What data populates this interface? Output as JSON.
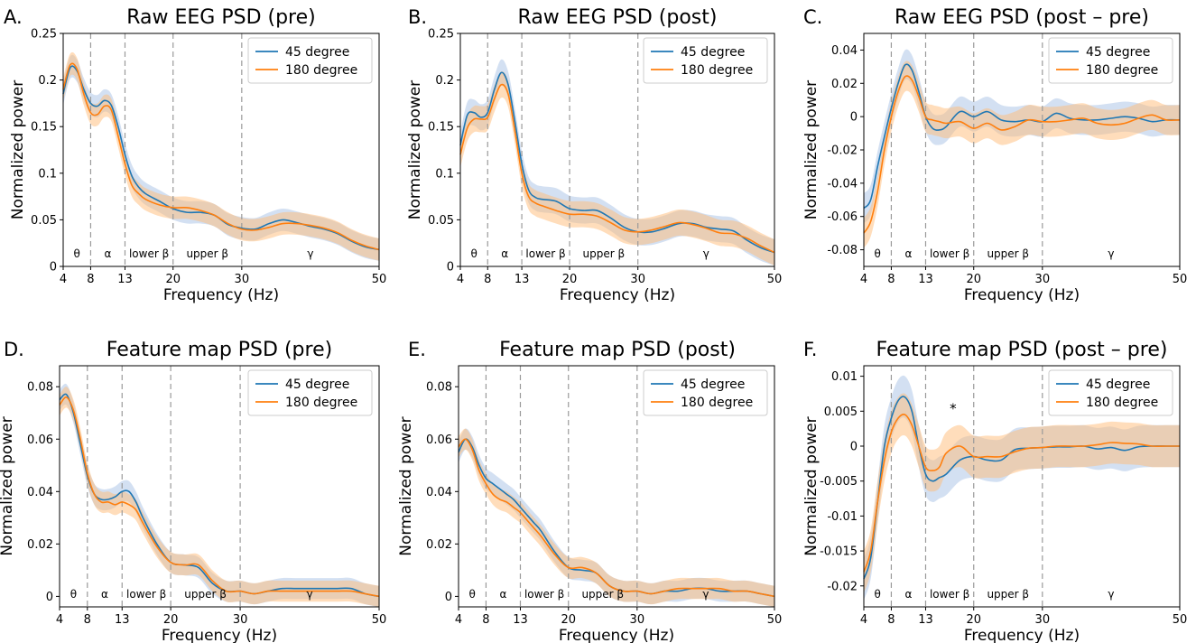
{
  "colors": {
    "series_45": "#1f77b4",
    "series_180": "#ff7f0e",
    "band_45": "#aec7e8",
    "band_180": "#ffbb78",
    "vline": "#9a9a9a"
  },
  "bands": [
    {
      "label": "θ",
      "x": 6
    },
    {
      "label": "α",
      "x": 10.5
    },
    {
      "label": "lower β",
      "x": 16.5
    },
    {
      "label": "upper β",
      "x": 25
    },
    {
      "label": "γ",
      "x": 40
    }
  ],
  "band_edges": [
    8,
    13,
    20,
    30
  ],
  "chart_data": [
    {
      "type": "line",
      "letter": "A.",
      "title": "Raw EEG PSD (pre)",
      "xlabel": "Frequency (Hz)",
      "ylabel": "Normalized power",
      "xlim": [
        4,
        50
      ],
      "ylim": [
        0,
        0.25
      ],
      "x_ticks": [
        4,
        8,
        13,
        20,
        30,
        50
      ],
      "y_ticks": [
        0,
        0.05,
        0.1,
        0.15,
        0.2,
        0.25
      ],
      "y_tick_labels": [
        "0",
        "0.05",
        "0.1",
        "0.15",
        "0.2",
        "0.25"
      ],
      "legend": [
        "45 degree",
        "180 degree"
      ],
      "legend_loc": "top-right",
      "x": [
        4,
        5,
        6,
        7,
        8,
        9,
        10,
        11,
        12,
        13,
        14,
        15,
        16,
        18,
        20,
        22,
        24,
        26,
        28,
        30,
        32,
        34,
        36,
        38,
        40,
        42,
        44,
        46,
        48,
        50
      ],
      "series": [
        {
          "name": "45 degree",
          "band": 0.012,
          "values": [
            0.185,
            0.213,
            0.21,
            0.19,
            0.175,
            0.172,
            0.178,
            0.173,
            0.15,
            0.12,
            0.097,
            0.085,
            0.078,
            0.07,
            0.062,
            0.058,
            0.058,
            0.055,
            0.045,
            0.041,
            0.04,
            0.046,
            0.05,
            0.047,
            0.043,
            0.04,
            0.035,
            0.027,
            0.021,
            0.018
          ]
        },
        {
          "name": "180 degree",
          "band": 0.012,
          "values": [
            0.19,
            0.216,
            0.212,
            0.185,
            0.165,
            0.163,
            0.172,
            0.168,
            0.14,
            0.11,
            0.087,
            0.078,
            0.072,
            0.066,
            0.063,
            0.063,
            0.06,
            0.055,
            0.046,
            0.04,
            0.039,
            0.042,
            0.046,
            0.046,
            0.044,
            0.041,
            0.036,
            0.028,
            0.022,
            0.018
          ]
        }
      ]
    },
    {
      "type": "line",
      "letter": "B.",
      "title": "Raw EEG PSD (post)",
      "xlabel": "Frequency (Hz)",
      "ylabel": "Normalized power",
      "xlim": [
        4,
        50
      ],
      "ylim": [
        0,
        0.25
      ],
      "x_ticks": [
        4,
        8,
        13,
        20,
        30,
        50
      ],
      "y_ticks": [
        0,
        0.05,
        0.1,
        0.15,
        0.2,
        0.25
      ],
      "y_tick_labels": [
        "0",
        "0.05",
        "0.1",
        "0.15",
        "0.2",
        "0.25"
      ],
      "legend": [
        "45 degree",
        "180 degree"
      ],
      "legend_loc": "top-right",
      "x": [
        4,
        5,
        6,
        7,
        8,
        9,
        10,
        11,
        12,
        13,
        14,
        15,
        16,
        18,
        20,
        22,
        24,
        26,
        28,
        30,
        32,
        34,
        36,
        38,
        40,
        42,
        44,
        46,
        48,
        50
      ],
      "series": [
        {
          "name": "45 degree",
          "band": 0.014,
          "values": [
            0.13,
            0.162,
            0.165,
            0.16,
            0.165,
            0.19,
            0.208,
            0.195,
            0.155,
            0.11,
            0.082,
            0.074,
            0.072,
            0.07,
            0.062,
            0.06,
            0.06,
            0.052,
            0.042,
            0.037,
            0.037,
            0.041,
            0.046,
            0.046,
            0.042,
            0.04,
            0.038,
            0.028,
            0.02,
            0.015
          ]
        },
        {
          "name": "180 degree",
          "band": 0.014,
          "values": [
            0.12,
            0.148,
            0.158,
            0.158,
            0.16,
            0.18,
            0.195,
            0.185,
            0.145,
            0.1,
            0.075,
            0.068,
            0.065,
            0.06,
            0.056,
            0.056,
            0.054,
            0.047,
            0.039,
            0.037,
            0.039,
            0.043,
            0.047,
            0.045,
            0.041,
            0.036,
            0.035,
            0.03,
            0.022,
            0.015
          ]
        }
      ]
    },
    {
      "type": "line",
      "letter": "C.",
      "title": "Raw EEG PSD (post – pre)",
      "xlabel": "Frequency (Hz)",
      "ylabel": "Normalized power",
      "xlim": [
        4,
        50
      ],
      "ylim": [
        -0.09,
        0.05
      ],
      "x_ticks": [
        4,
        8,
        13,
        20,
        30,
        50
      ],
      "y_ticks": [
        -0.08,
        -0.06,
        -0.04,
        -0.02,
        0,
        0.02,
        0.04
      ],
      "y_tick_labels": [
        "-0.08",
        "-0.06",
        "-0.04",
        "-0.02",
        "0",
        "0.02",
        "0.04"
      ],
      "legend": [
        "45 degree",
        "180 degree"
      ],
      "legend_loc": "top-right",
      "x": [
        4,
        5,
        6,
        7,
        8,
        9,
        10,
        11,
        12,
        13,
        14,
        15,
        16,
        18,
        20,
        22,
        24,
        26,
        28,
        30,
        32,
        34,
        36,
        38,
        40,
        42,
        44,
        46,
        48,
        50
      ],
      "series": [
        {
          "name": "45 degree",
          "band": 0.009,
          "values": [
            -0.055,
            -0.05,
            -0.03,
            -0.012,
            0.005,
            0.02,
            0.031,
            0.028,
            0.015,
            0.0,
            -0.007,
            -0.008,
            -0.006,
            0.003,
            0.0,
            0.003,
            -0.002,
            -0.003,
            -0.002,
            -0.003,
            0.002,
            -0.001,
            -0.002,
            -0.002,
            -0.001,
            0.0,
            -0.001,
            -0.003,
            -0.002,
            -0.002
          ]
        },
        {
          "name": "180 degree",
          "band": 0.009,
          "values": [
            -0.07,
            -0.063,
            -0.045,
            -0.02,
            0.0,
            0.015,
            0.024,
            0.022,
            0.012,
            0.0,
            -0.002,
            -0.003,
            -0.004,
            -0.003,
            -0.007,
            -0.004,
            -0.008,
            -0.006,
            -0.002,
            -0.003,
            -0.003,
            -0.002,
            -0.001,
            -0.004,
            -0.005,
            -0.004,
            -0.001,
            0.001,
            -0.002,
            -0.002
          ]
        }
      ]
    },
    {
      "type": "line",
      "letter": "D.",
      "title": "Feature map PSD (pre)",
      "xlabel": "Frequency (Hz)",
      "ylabel": "Normalized power",
      "xlim": [
        4,
        50
      ],
      "ylim": [
        -0.004,
        0.088
      ],
      "x_ticks": [
        4,
        8,
        13,
        20,
        30,
        50
      ],
      "y_ticks": [
        0,
        0.02,
        0.04,
        0.06,
        0.08
      ],
      "y_tick_labels": [
        "0",
        "0.02",
        "0.04",
        "0.06",
        "0.08"
      ],
      "legend": [
        "45 degree",
        "180 degree"
      ],
      "legend_loc": "top-right",
      "x": [
        4,
        5,
        6,
        7,
        8,
        9,
        10,
        11,
        12,
        13,
        14,
        15,
        16,
        18,
        20,
        22,
        24,
        26,
        28,
        30,
        32,
        34,
        36,
        38,
        40,
        42,
        44,
        46,
        48,
        50
      ],
      "series": [
        {
          "name": "45 degree",
          "band": 0.004,
          "values": [
            0.075,
            0.077,
            0.07,
            0.058,
            0.046,
            0.039,
            0.037,
            0.037,
            0.038,
            0.04,
            0.04,
            0.036,
            0.03,
            0.02,
            0.013,
            0.012,
            0.011,
            0.005,
            0.002,
            0.002,
            0.001,
            0.002,
            0.003,
            0.003,
            0.003,
            0.003,
            0.003,
            0.003,
            0.001,
            0.0
          ]
        },
        {
          "name": "180 degree",
          "band": 0.004,
          "values": [
            0.073,
            0.076,
            0.071,
            0.06,
            0.047,
            0.039,
            0.036,
            0.036,
            0.035,
            0.036,
            0.035,
            0.033,
            0.028,
            0.019,
            0.013,
            0.012,
            0.012,
            0.006,
            0.002,
            0.002,
            0.001,
            0.002,
            0.002,
            0.002,
            0.002,
            0.002,
            0.002,
            0.002,
            0.001,
            0.0
          ]
        }
      ]
    },
    {
      "type": "line",
      "letter": "E.",
      "title": "Feature map PSD (post)",
      "xlabel": "Frequency (Hz)",
      "ylabel": "Normalized power",
      "xlim": [
        4,
        50
      ],
      "ylim": [
        -0.004,
        0.088
      ],
      "x_ticks": [
        4,
        8,
        13,
        20,
        30,
        50
      ],
      "y_ticks": [
        0,
        0.02,
        0.04,
        0.06,
        0.08
      ],
      "y_tick_labels": [
        "0",
        "0.02",
        "0.04",
        "0.06",
        "0.08"
      ],
      "legend": [
        "45 degree",
        "180 degree"
      ],
      "legend_loc": "top-right",
      "x": [
        4,
        5,
        6,
        7,
        8,
        9,
        10,
        11,
        12,
        13,
        14,
        15,
        16,
        18,
        20,
        22,
        24,
        26,
        28,
        30,
        32,
        34,
        36,
        38,
        40,
        42,
        44,
        46,
        48,
        50
      ],
      "series": [
        {
          "name": "45 degree",
          "band": 0.004,
          "values": [
            0.055,
            0.06,
            0.057,
            0.05,
            0.045,
            0.043,
            0.041,
            0.039,
            0.037,
            0.034,
            0.031,
            0.028,
            0.025,
            0.017,
            0.011,
            0.01,
            0.009,
            0.004,
            0.002,
            0.002,
            0.001,
            0.002,
            0.002,
            0.003,
            0.003,
            0.002,
            0.002,
            0.002,
            0.001,
            0.0
          ]
        },
        {
          "name": "180 degree",
          "band": 0.004,
          "values": [
            0.057,
            0.06,
            0.056,
            0.048,
            0.043,
            0.039,
            0.037,
            0.036,
            0.034,
            0.032,
            0.029,
            0.026,
            0.023,
            0.016,
            0.011,
            0.011,
            0.009,
            0.004,
            0.002,
            0.002,
            0.001,
            0.002,
            0.003,
            0.003,
            0.003,
            0.003,
            0.002,
            0.002,
            0.001,
            0.0
          ]
        }
      ]
    },
    {
      "type": "line",
      "letter": "F.",
      "title": "Feature map PSD (post – pre)",
      "xlabel": "Frequency (Hz)",
      "ylabel": "Normalized power",
      "xlim": [
        4,
        50
      ],
      "ylim": [
        -0.023,
        0.0115
      ],
      "x_ticks": [
        4,
        8,
        13,
        20,
        30,
        50
      ],
      "y_ticks": [
        -0.02,
        -0.015,
        -0.01,
        -0.005,
        0,
        0.005,
        0.01
      ],
      "y_tick_labels": [
        "-0.02",
        "-0.015",
        "-0.01",
        "-0.005",
        "0",
        "0.005",
        "0.01"
      ],
      "legend": [
        "45 degree",
        "180 degree"
      ],
      "legend_loc": "top-right",
      "annotations": [
        {
          "text": "*",
          "x": 17,
          "y": 0.0055
        }
      ],
      "x": [
        4,
        5,
        6,
        7,
        8,
        9,
        10,
        11,
        12,
        13,
        14,
        15,
        16,
        18,
        20,
        22,
        24,
        26,
        28,
        30,
        32,
        34,
        36,
        38,
        40,
        42,
        44,
        46,
        48,
        50
      ],
      "series": [
        {
          "name": "45 degree",
          "band": 0.003,
          "values": [
            -0.019,
            -0.016,
            -0.008,
            0.0,
            0.004,
            0.0065,
            0.007,
            0.005,
            0.0,
            -0.004,
            -0.005,
            -0.0045,
            -0.004,
            -0.002,
            -0.0015,
            -0.002,
            -0.002,
            -0.0005,
            -0.0003,
            -0.0002,
            -0.0001,
            -0.0001,
            0.0,
            -0.0004,
            -0.0002,
            -0.0006,
            -0.0001,
            0.0,
            0.0,
            0.0
          ]
        },
        {
          "name": "180 degree",
          "band": 0.003,
          "values": [
            -0.018,
            -0.015,
            -0.008,
            -0.002,
            0.002,
            0.004,
            0.0045,
            0.003,
            0.0,
            -0.003,
            -0.0035,
            -0.003,
            -0.001,
            0.0,
            -0.0015,
            -0.0015,
            -0.0015,
            -0.0008,
            -0.0003,
            -0.0002,
            0.0,
            0.0,
            0.0,
            0.0002,
            0.0005,
            0.0004,
            0.0003,
            0.0,
            0.0,
            0.0
          ]
        }
      ]
    }
  ]
}
